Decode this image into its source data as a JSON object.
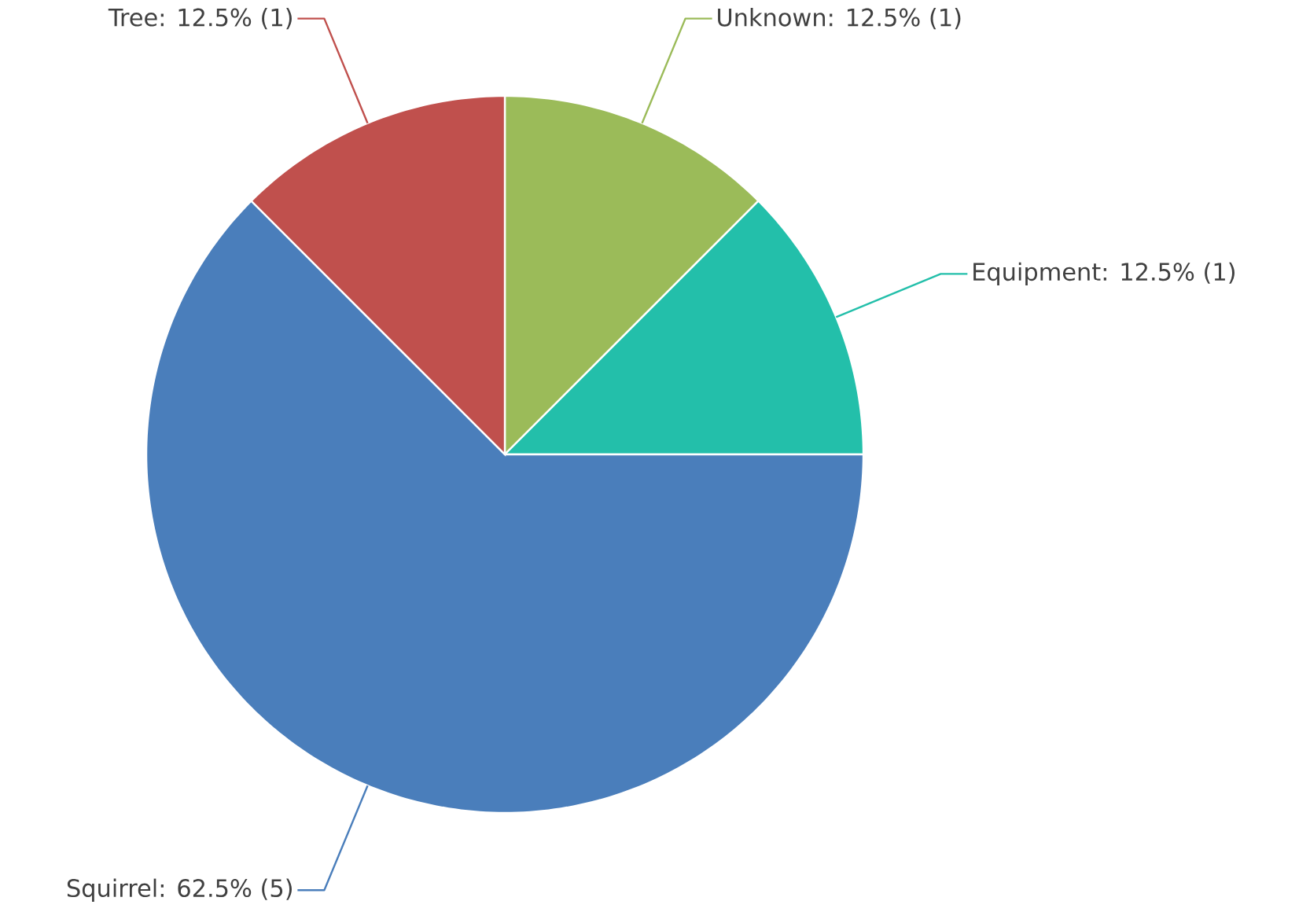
{
  "chart_data": {
    "type": "pie",
    "categories": [
      "Unknown: 12.5% (1)",
      "Equipment: 12.5% (1)",
      "Squirrel: 62.5% (5)",
      "Tree: 12.5% (1)"
    ],
    "values": [
      1,
      1,
      5,
      1
    ],
    "colors": [
      "#9bbb59",
      "#23bfaa",
      "#4a7ebb",
      "#c0504d"
    ]
  }
}
